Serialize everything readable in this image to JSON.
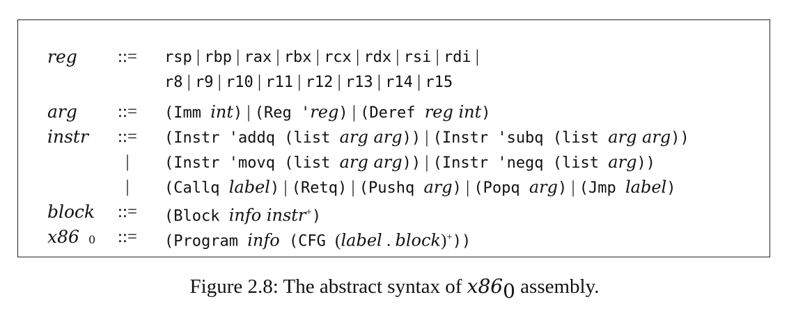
{
  "grammar": [
    {
      "nt": "reg",
      "sub": "",
      "op": "::=",
      "parts": [
        {
          "c": "t",
          "v": "rsp"
        },
        {
          "c": "p",
          "v": " | "
        },
        {
          "c": "t",
          "v": "rbp"
        },
        {
          "c": "p",
          "v": " | "
        },
        {
          "c": "t",
          "v": "rax"
        },
        {
          "c": "p",
          "v": " | "
        },
        {
          "c": "t",
          "v": "rbx"
        },
        {
          "c": "p",
          "v": " | "
        },
        {
          "c": "t",
          "v": "rcx"
        },
        {
          "c": "p",
          "v": " | "
        },
        {
          "c": "t",
          "v": "rdx"
        },
        {
          "c": "p",
          "v": " | "
        },
        {
          "c": "t",
          "v": "rsi"
        },
        {
          "c": "p",
          "v": " | "
        },
        {
          "c": "t",
          "v": "rdi"
        },
        {
          "c": "p",
          "v": " |"
        }
      ]
    },
    {
      "nt": "",
      "sub": "",
      "op": "",
      "parts": [
        {
          "c": "t",
          "v": "r8"
        },
        {
          "c": "p",
          "v": " | "
        },
        {
          "c": "t",
          "v": "r9"
        },
        {
          "c": "p",
          "v": " | "
        },
        {
          "c": "t",
          "v": "r10"
        },
        {
          "c": "p",
          "v": " | "
        },
        {
          "c": "t",
          "v": "r11"
        },
        {
          "c": "p",
          "v": " | "
        },
        {
          "c": "t",
          "v": "r12"
        },
        {
          "c": "p",
          "v": " | "
        },
        {
          "c": "t",
          "v": "r13"
        },
        {
          "c": "p",
          "v": " | "
        },
        {
          "c": "t",
          "v": "r14"
        },
        {
          "c": "p",
          "v": " | "
        },
        {
          "c": "t",
          "v": "r15"
        }
      ]
    },
    {
      "nt": "arg",
      "sub": "",
      "op": "::=",
      "parts": [
        {
          "c": "t",
          "v": "(Imm "
        },
        {
          "c": "m",
          "v": "int"
        },
        {
          "c": "t",
          "v": ")"
        },
        {
          "c": "p",
          "v": " | "
        },
        {
          "c": "t",
          "v": "(Reg '"
        },
        {
          "c": "m",
          "v": "reg"
        },
        {
          "c": "t",
          "v": ")"
        },
        {
          "c": "p",
          "v": " | "
        },
        {
          "c": "t",
          "v": "(Deref "
        },
        {
          "c": "m",
          "v": "reg int"
        },
        {
          "c": "t",
          "v": ")"
        }
      ]
    },
    {
      "nt": "instr",
      "sub": "",
      "op": "::=",
      "parts": [
        {
          "c": "t",
          "v": "(Instr 'addq (list "
        },
        {
          "c": "m",
          "v": "arg arg"
        },
        {
          "c": "t",
          "v": "))"
        },
        {
          "c": "p",
          "v": " | "
        },
        {
          "c": "t",
          "v": "(Instr 'subq (list "
        },
        {
          "c": "m",
          "v": "arg arg"
        },
        {
          "c": "t",
          "v": "))"
        }
      ]
    },
    {
      "nt": "",
      "sub": "",
      "op": "|",
      "parts": [
        {
          "c": "t",
          "v": "(Instr 'movq (list "
        },
        {
          "c": "m",
          "v": "arg arg"
        },
        {
          "c": "t",
          "v": "))"
        },
        {
          "c": "p",
          "v": " | "
        },
        {
          "c": "t",
          "v": "(Instr 'negq (list "
        },
        {
          "c": "m",
          "v": "arg"
        },
        {
          "c": "t",
          "v": "))"
        }
      ]
    },
    {
      "nt": "",
      "sub": "",
      "op": "|",
      "parts": [
        {
          "c": "t",
          "v": "(Callq "
        },
        {
          "c": "m",
          "v": "label"
        },
        {
          "c": "t",
          "v": ")"
        },
        {
          "c": "p",
          "v": " | "
        },
        {
          "c": "t",
          "v": "(Retq)"
        },
        {
          "c": "p",
          "v": " | "
        },
        {
          "c": "t",
          "v": "(Pushq "
        },
        {
          "c": "m",
          "v": "arg"
        },
        {
          "c": "t",
          "v": ")"
        },
        {
          "c": "p",
          "v": " | "
        },
        {
          "c": "t",
          "v": "(Popq "
        },
        {
          "c": "m",
          "v": "arg"
        },
        {
          "c": "t",
          "v": ")"
        },
        {
          "c": "p",
          "v": " | "
        },
        {
          "c": "t",
          "v": "(Jmp "
        },
        {
          "c": "m",
          "v": "label"
        },
        {
          "c": "t",
          "v": ")"
        }
      ]
    },
    {
      "nt": "block",
      "sub": "",
      "op": "::=",
      "parts": [
        {
          "c": "t",
          "v": "(Block "
        },
        {
          "c": "m",
          "v": "info instr"
        },
        {
          "c": "sup",
          "v": "+"
        },
        {
          "c": "t",
          "v": ")"
        }
      ]
    },
    {
      "nt": "x86",
      "sub": "0",
      "op": "::=",
      "parts": [
        {
          "c": "t",
          "v": "(Program "
        },
        {
          "c": "m",
          "v": "info"
        },
        {
          "c": "t",
          "v": " (CFG "
        },
        {
          "c": "p",
          "v": "("
        },
        {
          "c": "m",
          "v": "label"
        },
        {
          "c": "p",
          "v": " . "
        },
        {
          "c": "m",
          "v": "block"
        },
        {
          "c": "p",
          "v": ")"
        },
        {
          "c": "sup",
          "v": "+"
        },
        {
          "c": "t",
          "v": "))"
        }
      ]
    }
  ],
  "caption": {
    "prefix": "Figure 2.8: The abstract syntax of ",
    "math": "x86",
    "sub": "0",
    "suffix": " assembly."
  }
}
